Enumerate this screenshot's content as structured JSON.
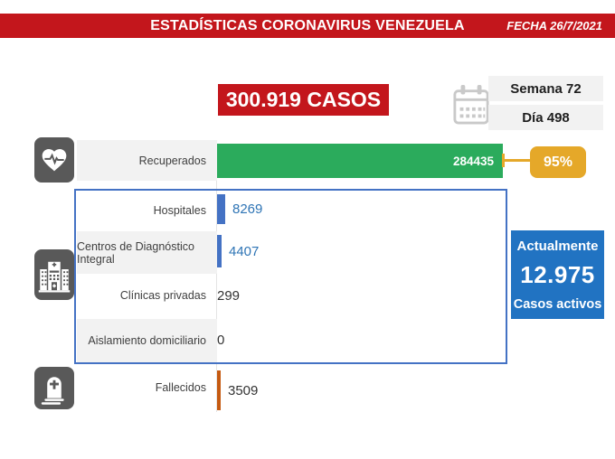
{
  "banner": {
    "title": "ESTADÍSTICAS CORONAVIRUS VENEZUELA",
    "date": "FECHA 26/7/2021"
  },
  "summary": {
    "total_cases": "300.919 CASOS",
    "week": "Semana 72",
    "day": "Día 498"
  },
  "recovered": {
    "percent": "95%"
  },
  "active": {
    "heading": "Actualmente",
    "value": "12.975",
    "caption": "Casos activos"
  },
  "rows": [
    {
      "label": "Recuperados",
      "value": "284435"
    },
    {
      "label": "Hospitales",
      "value": "8269"
    },
    {
      "label": "Centros de Diagnóstico Integral",
      "value": "4407"
    },
    {
      "label": "Clínicas privadas",
      "value": "299"
    },
    {
      "label": "Aislamiento domiciliario",
      "value": "0"
    },
    {
      "label": "Fallecidos",
      "value": "3509"
    }
  ],
  "icons": [
    "heartbeat-icon",
    "hospital-icon",
    "tombstone-icon",
    "calendar-icon"
  ],
  "colors": {
    "red": "#C3161C",
    "green": "#2BAB5C",
    "yellow": "#E5A829",
    "bar_blue": "#4472C4",
    "active_blue": "#2173C2",
    "orange": "#C55A11",
    "icon_gray": "#595959"
  },
  "chart_data": {
    "type": "bar",
    "orientation": "horizontal",
    "title": "ESTADÍSTICAS CORONAVIRUS VENEZUELA",
    "date": "26/7/2021",
    "total_cases": 300919,
    "week": 72,
    "day": 498,
    "recovered_percent": 95,
    "active_cases": 12975,
    "categories": [
      "Recuperados",
      "Hospitales",
      "Centros de Diagnóstico Integral",
      "Clínicas privadas",
      "Aislamiento domiciliario",
      "Fallecidos"
    ],
    "values": [
      284435,
      8269,
      4407,
      299,
      0,
      3509
    ],
    "bar_colors": [
      "#2BAB5C",
      "#4472C4",
      "#4472C4",
      "#4472C4",
      "#4472C4",
      "#C55A11"
    ],
    "xlim": [
      0,
      300000
    ],
    "grid": false,
    "legend": false
  }
}
